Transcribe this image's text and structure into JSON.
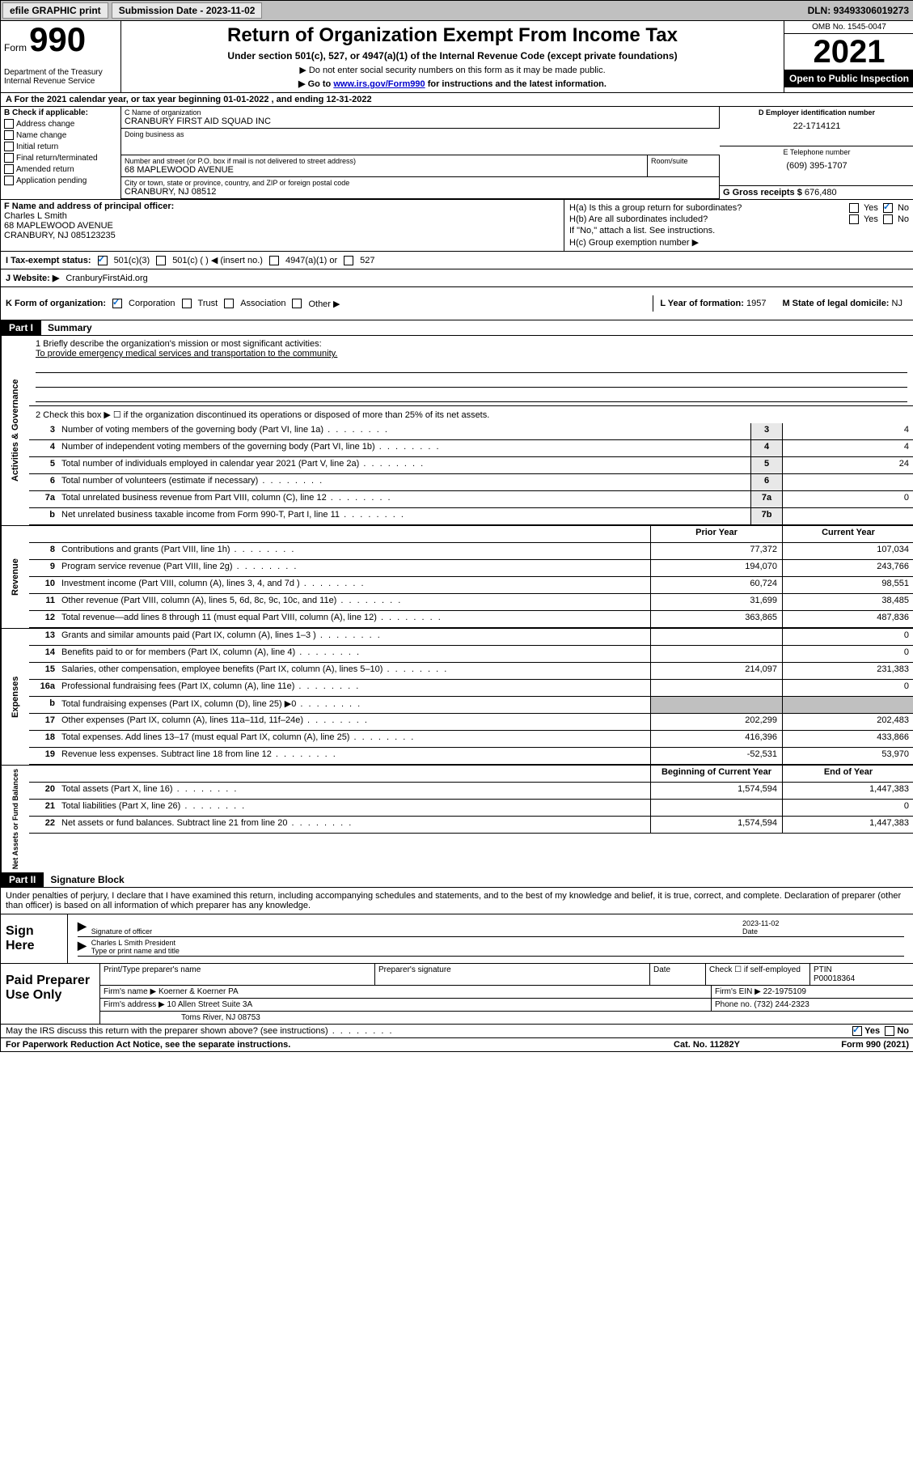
{
  "topbar": {
    "efile": "efile GRAPHIC print",
    "submission_label": "Submission Date - 2023-11-02",
    "dln": "DLN: 93493306019273"
  },
  "header": {
    "form_prefix": "Form",
    "form_number": "990",
    "dept": "Department of the Treasury Internal Revenue Service",
    "title": "Return of Organization Exempt From Income Tax",
    "subtitle": "Under section 501(c), 527, or 4947(a)(1) of the Internal Revenue Code (except private foundations)",
    "note1": "▶ Do not enter social security numbers on this form as it may be made public.",
    "note2_pre": "▶ Go to ",
    "note2_link": "www.irs.gov/Form990",
    "note2_post": " for instructions and the latest information.",
    "omb": "OMB No. 1545-0047",
    "year": "2021",
    "inspection": "Open to Public Inspection"
  },
  "period": {
    "line": "A For the 2021 calendar year, or tax year beginning 01-01-2022   , and ending 12-31-2022"
  },
  "colB": {
    "label": "B Check if applicable:",
    "items": [
      "Address change",
      "Name change",
      "Initial return",
      "Final return/terminated",
      "Amended return",
      "Application pending"
    ]
  },
  "colC": {
    "name_label": "C Name of organization",
    "name": "CRANBURY FIRST AID SQUAD INC",
    "dba_label": "Doing business as",
    "addr_label": "Number and street (or P.O. box if mail is not delivered to street address)",
    "addr": "68 MAPLEWOOD AVENUE",
    "room_label": "Room/suite",
    "city_label": "City or town, state or province, country, and ZIP or foreign postal code",
    "city": "CRANBURY, NJ  08512"
  },
  "colD": {
    "label": "D Employer identification number",
    "ein": "22-1714121"
  },
  "colE": {
    "label": "E Telephone number",
    "phone": "(609) 395-1707"
  },
  "colG": {
    "label": "G Gross receipts $",
    "value": "676,480"
  },
  "officer": {
    "label": "F Name and address of principal officer:",
    "name": "Charles L Smith",
    "addr1": "68 MAPLEWOOD AVENUE",
    "addr2": "CRANBURY, NJ  085123235"
  },
  "colH": {
    "a_label": "H(a)  Is this a group return for subordinates?",
    "b_label": "H(b)  Are all subordinates included?",
    "b_note": "If \"No,\" attach a list. See instructions.",
    "c_label": "H(c)  Group exemption number ▶",
    "yes": "Yes",
    "no": "No"
  },
  "status": {
    "label": "I   Tax-exempt status:",
    "opts": [
      "501(c)(3)",
      "501(c) (  ) ◀ (insert no.)",
      "4947(a)(1) or",
      "527"
    ]
  },
  "website": {
    "label": "J   Website: ▶",
    "value": "CranburyFirstAid.org"
  },
  "korg": {
    "label": "K Form of organization:",
    "opts": [
      "Corporation",
      "Trust",
      "Association",
      "Other ▶"
    ],
    "l_label": "L Year of formation:",
    "l_value": "1957",
    "m_label": "M State of legal domicile:",
    "m_value": "NJ"
  },
  "parts": {
    "p1": "Part I",
    "p1_title": "Summary",
    "p2": "Part II",
    "p2_title": "Signature Block"
  },
  "summary": {
    "line1_label": "1  Briefly describe the organization's mission or most significant activities:",
    "mission": "To provide emergency medical services and transportation to the community.",
    "line2": "2   Check this box ▶ ☐  if the organization discontinued its operations or disposed of more than 25% of its net assets.",
    "sections": {
      "gov": "Activities & Governance",
      "rev": "Revenue",
      "exp": "Expenses",
      "net": "Net Assets or Fund Balances"
    },
    "col_prior": "Prior Year",
    "col_current": "Current Year",
    "col_begin": "Beginning of Current Year",
    "col_end": "End of Year",
    "gov_lines": [
      {
        "n": "3",
        "t": "Number of voting members of the governing body (Part VI, line 1a)",
        "box": "3",
        "v": "4"
      },
      {
        "n": "4",
        "t": "Number of independent voting members of the governing body (Part VI, line 1b)",
        "box": "4",
        "v": "4"
      },
      {
        "n": "5",
        "t": "Total number of individuals employed in calendar year 2021 (Part V, line 2a)",
        "box": "5",
        "v": "24"
      },
      {
        "n": "6",
        "t": "Total number of volunteers (estimate if necessary)",
        "box": "6",
        "v": ""
      },
      {
        "n": "7a",
        "t": "Total unrelated business revenue from Part VIII, column (C), line 12",
        "box": "7a",
        "v": "0"
      },
      {
        "n": "b",
        "t": "Net unrelated business taxable income from Form 990-T, Part I, line 11",
        "box": "7b",
        "v": ""
      }
    ],
    "rev_lines": [
      {
        "n": "8",
        "t": "Contributions and grants (Part VIII, line 1h)",
        "p": "77,372",
        "c": "107,034"
      },
      {
        "n": "9",
        "t": "Program service revenue (Part VIII, line 2g)",
        "p": "194,070",
        "c": "243,766"
      },
      {
        "n": "10",
        "t": "Investment income (Part VIII, column (A), lines 3, 4, and 7d )",
        "p": "60,724",
        "c": "98,551"
      },
      {
        "n": "11",
        "t": "Other revenue (Part VIII, column (A), lines 5, 6d, 8c, 9c, 10c, and 11e)",
        "p": "31,699",
        "c": "38,485"
      },
      {
        "n": "12",
        "t": "Total revenue—add lines 8 through 11 (must equal Part VIII, column (A), line 12)",
        "p": "363,865",
        "c": "487,836"
      }
    ],
    "exp_lines": [
      {
        "n": "13",
        "t": "Grants and similar amounts paid (Part IX, column (A), lines 1–3 )",
        "p": "",
        "c": "0"
      },
      {
        "n": "14",
        "t": "Benefits paid to or for members (Part IX, column (A), line 4)",
        "p": "",
        "c": "0"
      },
      {
        "n": "15",
        "t": "Salaries, other compensation, employee benefits (Part IX, column (A), lines 5–10)",
        "p": "214,097",
        "c": "231,383"
      },
      {
        "n": "16a",
        "t": "Professional fundraising fees (Part IX, column (A), line 11e)",
        "p": "",
        "c": "0"
      },
      {
        "n": "b",
        "t": "Total fundraising expenses (Part IX, column (D), line 25) ▶0",
        "p": "grey",
        "c": "grey"
      },
      {
        "n": "17",
        "t": "Other expenses (Part IX, column (A), lines 11a–11d, 11f–24e)",
        "p": "202,299",
        "c": "202,483"
      },
      {
        "n": "18",
        "t": "Total expenses. Add lines 13–17 (must equal Part IX, column (A), line 25)",
        "p": "416,396",
        "c": "433,866"
      },
      {
        "n": "19",
        "t": "Revenue less expenses. Subtract line 18 from line 12",
        "p": "-52,531",
        "c": "53,970"
      }
    ],
    "net_lines": [
      {
        "n": "20",
        "t": "Total assets (Part X, line 16)",
        "p": "1,574,594",
        "c": "1,447,383"
      },
      {
        "n": "21",
        "t": "Total liabilities (Part X, line 26)",
        "p": "",
        "c": "0"
      },
      {
        "n": "22",
        "t": "Net assets or fund balances. Subtract line 21 from line 20",
        "p": "1,574,594",
        "c": "1,447,383"
      }
    ]
  },
  "sig": {
    "declaration": "Under penalties of perjury, I declare that I have examined this return, including accompanying schedules and statements, and to the best of my knowledge and belief, it is true, correct, and complete. Declaration of preparer (other than officer) is based on all information of which preparer has any knowledge.",
    "sign_here": "Sign Here",
    "sig_officer": "Signature of officer",
    "date_label": "Date",
    "date_value": "2023-11-02",
    "name_title": "Charles L Smith  President",
    "name_title_label": "Type or print name and title",
    "paid": "Paid Preparer Use Only",
    "prep_name_label": "Print/Type preparer's name",
    "prep_sig_label": "Preparer's signature",
    "check_if": "Check ☐ if self-employed",
    "ptin_label": "PTIN",
    "ptin": "P00018364",
    "firm_name_label": "Firm's name     ▶",
    "firm_name": "Koerner & Koerner PA",
    "firm_ein_label": "Firm's EIN ▶",
    "firm_ein": "22-1975109",
    "firm_addr_label": "Firm's address ▶",
    "firm_addr1": "10 Allen Street Suite 3A",
    "firm_addr2": "Toms River, NJ  08753",
    "phone_label": "Phone no.",
    "phone": "(732) 244-2323"
  },
  "footer": {
    "discuss": "May the IRS discuss this return with the preparer shown above? (see instructions)",
    "yes": "Yes",
    "no": "No",
    "paperwork": "For Paperwork Reduction Act Notice, see the separate instructions.",
    "cat": "Cat. No. 11282Y",
    "form": "Form 990 (2021)"
  }
}
